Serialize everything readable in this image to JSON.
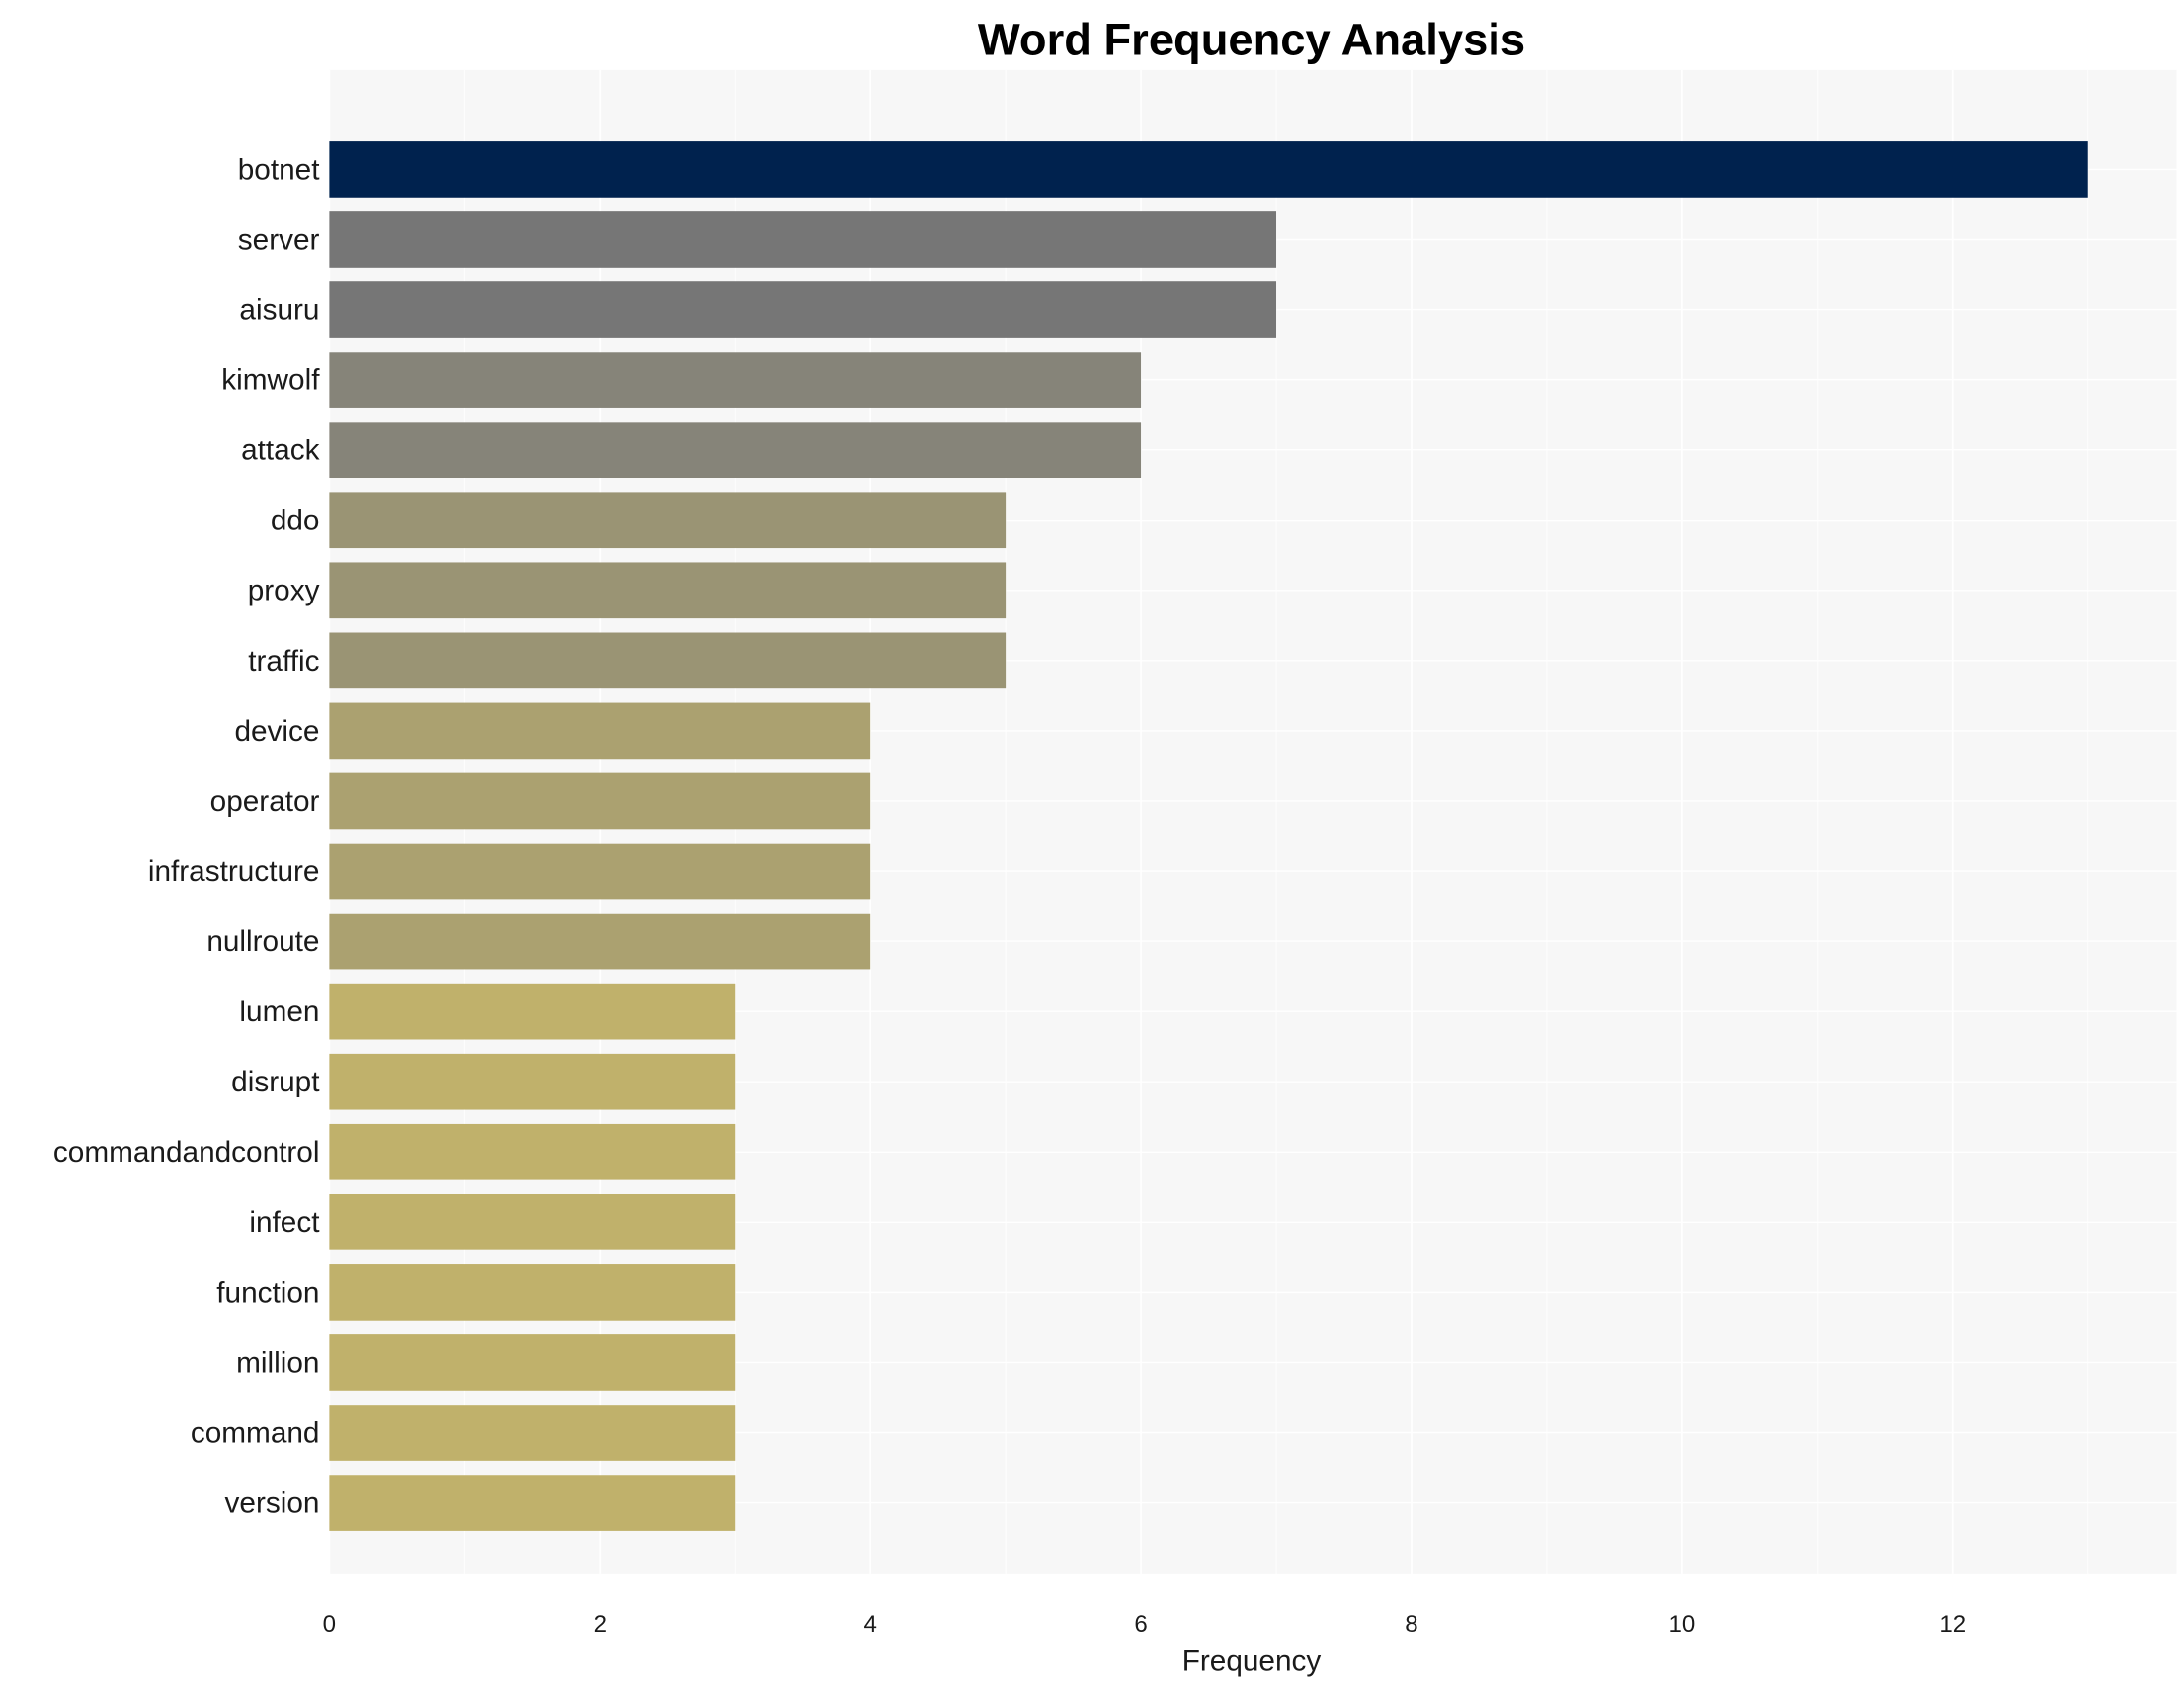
{
  "chart_data": {
    "type": "bar",
    "orientation": "horizontal",
    "title": "Word Frequency Analysis",
    "xlabel": "Frequency",
    "ylabel": "",
    "xlim": [
      0,
      13.6
    ],
    "xticks": [
      0,
      2,
      4,
      6,
      8,
      10,
      12
    ],
    "grid": true,
    "categories": [
      "botnet",
      "server",
      "aisuru",
      "kimwolf",
      "attack",
      "ddo",
      "proxy",
      "traffic",
      "device",
      "operator",
      "infrastructure",
      "nullroute",
      "lumen",
      "disrupt",
      "commandandcontrol",
      "infect",
      "function",
      "million",
      "command",
      "version"
    ],
    "values": [
      13,
      7,
      7,
      6,
      6,
      5,
      5,
      5,
      4,
      4,
      4,
      4,
      3,
      3,
      3,
      3,
      3,
      3,
      3,
      3
    ],
    "colors": {
      "13": "#00224e",
      "7": "#767676",
      "6": "#868479",
      "5": "#9a9474",
      "4": "#aba170",
      "3": "#c0b16b"
    },
    "plot_background": "#f7f7f7"
  }
}
